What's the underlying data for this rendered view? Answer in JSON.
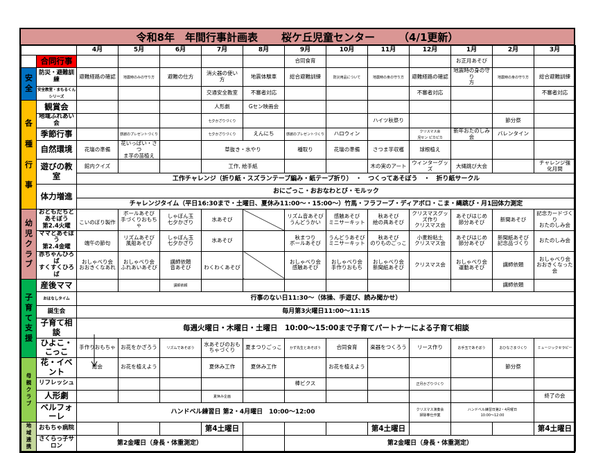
{
  "title": {
    "part1": "令和8年　年間行事計画表",
    "part2": "桜ケ丘児童センター",
    "part3": "（4/1更新）"
  },
  "months": [
    "4月",
    "5月",
    "6月",
    "7月",
    "8月",
    "9月",
    "10月",
    "11月",
    "12月",
    "1月",
    "2月",
    "3月"
  ],
  "colors": {
    "title": "#da9694",
    "joint": "#ff0000"
  },
  "sections": [
    {
      "label": "",
      "color": "#ffffff",
      "items": [
        {
          "label": "合同行事",
          "highlight": "#ff0000",
          "size": "large",
          "lines": [
            [
              "",
              "",
              "",
              "",
              "",
              "合同食育",
              "",
              "",
              "",
              "お正月あそび",
              "",
              ""
            ]
          ]
        }
      ]
    },
    {
      "label": "安\n全",
      "color": "#0070c0",
      "items": [
        {
          "label": "防災・避難訓練",
          "lines": [
            [
              "避難経路の確認",
              {
                "t": "地震時のみの守り方",
                "size": "small"
              },
              "避難の仕方",
              "消火器の使い\n方",
              "地震体験車",
              "総合避難訓練",
              {
                "t": "防災用品について",
                "size": "small"
              },
              {
                "t": "地震時の身の守り方",
                "size": "small"
              },
              "避難経路の確認",
              "地震時の身の守り\n方",
              {
                "t": "地震時の身の守り方",
                "size": "small"
              },
              "総合避難訓練"
            ]
          ]
        },
        {
          "label": "安全教室・まもるくん\nシリーズ",
          "size": "small",
          "lines": [
            [
              "",
              "",
              "",
              "交通安全教室",
              "不審者対応",
              "",
              "",
              "",
              "不審者対応",
              "",
              "",
              "不審者対応"
            ]
          ]
        }
      ]
    },
    {
      "label": "各\n\n種\n\n行\n\n事",
      "color": "#ffc000",
      "items": [
        {
          "label": "観賞会",
          "size": "large",
          "lines": [
            [
              "",
              "",
              "",
              "人形劇",
              "Gセン映画会",
              "",
              "",
              "",
              "",
              "",
              "",
              ""
            ]
          ]
        },
        {
          "label": "地域ふれあい会",
          "lines": [
            [
              "",
              "",
              "",
              {
                "t": "七夕かざりづくり",
                "size": "small"
              },
              "",
              "",
              "",
              "ハイツ秋祭り",
              "",
              "",
              "節分祭",
              ""
            ]
          ]
        },
        {
          "label": "季節行事",
          "size": "large",
          "lines": [
            [
              "",
              {
                "t": "感謝のプレゼントづくり",
                "size": "small"
              },
              "",
              {
                "t": "七夕かざりづくり",
                "size": "small"
              },
              "えんにち",
              {
                "t": "感謝のプレゼントづくり",
                "size": "small"
              },
              "ハロウィン",
              "",
              {
                "t": "クリスマス会\n児セン ピカピカ",
                "size": "small"
              },
              "新年おたのしみ会",
              "バレンタイン",
              ""
            ]
          ]
        },
        {
          "label": "自然環境",
          "size": "large",
          "lines": [
            [
              "花壇の準備",
              "花いっぱい・さつ\nま芋の苗植え",
              "",
              {
                "t": "草抜き・水やり",
                "span": 2
              },
              "種取り",
              "花壇の準備",
              "さつま芋収穫",
              "球根植え",
              "",
              "",
              ""
            ]
          ]
        },
        {
          "label": "遊びの教室",
          "size": "large",
          "lines": [
            [
              "館内クイズ",
              "",
              "",
              {
                "t": "工作, 絵手紙",
                "span": 2
              },
              "",
              "",
              "木の実のアート",
              "ウィンターグッズ",
              "大縄跳び大会",
              "",
              "チャレンジ強\n化月間"
            ],
            [
              {
                "t": "工作チャレンジ（折り紙・スズランテープ編み・紙テープ折り）　・　つくってあそぼう　・　折り紙サークル",
                "span": 12,
                "size": "span"
              }
            ]
          ]
        },
        {
          "label": "体力増進",
          "size": "large",
          "lines": [
            [
              {
                "t": "おにごっこ・おおなわとび・モルック",
                "span": 12,
                "size": "span"
              }
            ],
            [
              {
                "t": "チャレンジタイム（平日16:30まで・土曜日、夏休み11:00～・15:00～）竹馬・フラフープ・ディアボロ・こま・縄跳び・月1回体力測定",
                "span": 12,
                "size": "span"
              }
            ]
          ]
        }
      ]
    },
    {
      "label": "幼\n児\nク\nラ\nブ",
      "color": "#da9694",
      "items": [
        {
          "label": "おともだちとあそぼう\n第2.4火曜",
          "lines": [
            [
              "\nこいのぼり製作",
              "ボールあそび\n手づくりおもちゃ",
              "しゃぼん玉\n七夕かざり",
              "水あそび\n",
              {
                "slash": true
              },
              "リズム音あそび\nうんどうかい",
              "感触あそび\nミニサーキット",
              "秋あそび\n絵の具あそび",
              "クリスマスグッズ作り\nクリスマス会",
              "あそびはじめ\n節分あそび",
              "新聞あそび\n",
              "記念カードづくり\nおたのしみ会"
            ]
          ]
        },
        {
          "label": "ママとあそぼう\n第2.4金曜",
          "lines": [
            [
              "\n端午の節句",
              "リズムあそび\n風船あそび",
              "しゃぼん玉\n七夕かざり",
              "水あそび\n",
              "",
              "秋まつり\nボールあそび",
              "うんどうあそび\nミニサーキット",
              "秋あそび\nのりものごっこ",
              "小麦粉粘土\nクリスマス会",
              "あそびはじめ\n節分あそび",
              "新聞紙あそび\n記念品づくり",
              "おたのしみ会\n"
            ]
          ]
        },
        {
          "label": "赤ちゃんひろば\nすくすくひろば",
          "lines": [
            [
              "おしゃべり会\nおおきくなあれ",
              "おしゃべり会\nふれあいあそび",
              "講師依頼\n音あそび",
              "\nわくわくあそび",
              {
                "slash": true
              },
              "おしゃべり会\n感触あそび",
              "おしゃべり会\n手作りおもち",
              "おしゃべり会\n新聞紙あそび",
              "クリスマス会",
              "おしゃべり会\n運動あそび",
              "講師依頼",
              "おしゃべり会\nおおきくなった会"
            ]
          ]
        }
      ]
    },
    {
      "label": "子\n育\nて\n支\n援",
      "color": "#00b050",
      "items": [
        {
          "label": "産後ママ",
          "size": "large",
          "lines": [
            [
              "",
              "",
              {
                "t": "講師依頼",
                "size": "small"
              },
              "",
              "",
              "",
              "",
              "",
              "",
              "",
              "講師依頼",
              ""
            ]
          ]
        },
        {
          "label": "おはなしタイム",
          "size": "small",
          "lines": [
            [
              {
                "t": "行事のない日11:30～（体操、手遊び、読み聞かせ）",
                "span": 12,
                "size": "span"
              }
            ]
          ]
        },
        {
          "label": "誕生会",
          "lines": [
            [
              {
                "t": "毎月第3火曜日11:00～11:15",
                "span": 12,
                "size": "span"
              }
            ]
          ]
        },
        {
          "label": "子育て相談",
          "size": "large",
          "lines": [
            [
              {
                "t": "毎週火曜日・木曜日・土曜日　10:00～15:00まで子育てパートナーによる子育て相談",
                "span": 12,
                "size": "big"
              }
            ]
          ]
        },
        {
          "label": "ひよこ・こっこ",
          "size": "large",
          "lines": [
            [
              "手作りおもちゃ",
              "お花をかざろう",
              {
                "t": "リズムであそぼう",
                "size": "small"
              },
              "水あそびのおも\nちゃづくり",
              "夏まつりごっこ",
              {
                "t": "かず先生とあそぼう",
                "size": "small"
              },
              "合同食育",
              "楽器をつくろう",
              "リース作り",
              {
                "t": "お手玉であそぼう",
                "size": "small"
              },
              {
                "t": "おひなさまづくり",
                "size": "small"
              },
              {
                "t": "ミュージックセラピー",
                "size": "small"
              }
            ]
          ]
        }
      ]
    },
    {
      "label": "母\n親\nク\nラ\nブ",
      "color": "#92d050",
      "small_label": true,
      "items": [
        {
          "label": "花・イベント",
          "size": "large",
          "lines": [
            [
              "総会",
              "お花を植えよう",
              "",
              "夏休み工作",
              "夏休み工作",
              "",
              "お花を植えよう",
              "",
              "",
              "",
              "節分祭",
              ""
            ]
          ]
        },
        {
          "label": "リフレッシュ",
          "lines": [
            [
              "",
              "",
              "",
              "",
              "",
              "棒ビクス",
              "",
              "",
              {
                "t": "正月かざりづくり",
                "size": "small"
              },
              "",
              "",
              ""
            ]
          ]
        },
        {
          "label": "人形劇",
          "size": "large",
          "lines": [
            [
              "",
              "",
              "",
              {
                "t": "夏休み企画",
                "size": "small"
              },
              "",
              "",
              "",
              "",
              "",
              "",
              "",
              "終了の会"
            ]
          ]
        },
        {
          "label": "ベルフォーレ",
          "size": "large",
          "lines": [
            [
              {
                "t": "ハンドベル練習日 第2・4月曜日　10:00～12:00",
                "span": 8,
                "size": "span"
              },
              {
                "t": "クリスマス演奏会\n掃除奉仕作業",
                "size": "small"
              },
              {
                "t": "ハンドベル練習日第2・4月曜日\n10:00～12:00",
                "span": 2,
                "size": "small"
              },
              ""
            ]
          ]
        }
      ]
    },
    {
      "label": "地\n域\n連\n携",
      "color": "#c4d79b",
      "small_label": true,
      "items": [
        {
          "label": "おもちゃ病院",
          "lines": [
            [
              "",
              "",
              "",
              {
                "t": "第4土曜日",
                "size": "big"
              },
              "",
              "",
              "",
              {
                "t": "第4土曜日",
                "size": "big"
              },
              "",
              "",
              "",
              {
                "t": "第4土曜日",
                "size": "big"
              }
            ]
          ]
        },
        {
          "label": "さくらっ子サロン",
          "lines": [
            [
              {
                "t": "第2金曜日（身長・体重測定）",
                "span": 4,
                "size": "span"
              },
              "",
              {
                "t": "第2金曜日（身長・体重測定）",
                "span": 7,
                "size": "span"
              }
            ]
          ]
        }
      ]
    }
  ]
}
